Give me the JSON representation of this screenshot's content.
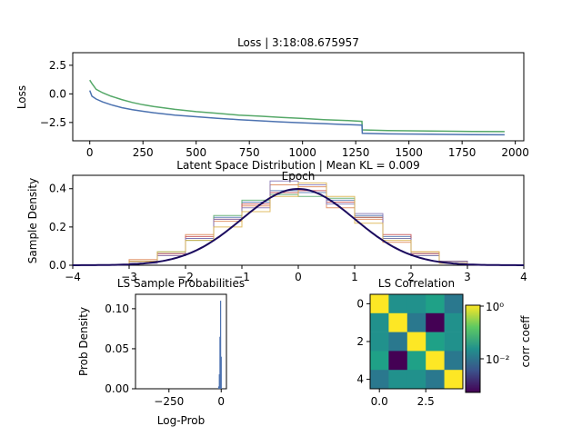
{
  "chart_data": [
    {
      "type": "line",
      "title": "Loss | 3:18:08.675957",
      "xlabel": "Epoch",
      "ylabel": "Loss",
      "xlim": [
        -80,
        2040
      ],
      "ylim": [
        -4.1,
        3.6
      ],
      "xticks": [
        "0",
        "250",
        "500",
        "750",
        "1000",
        "1250",
        "1500",
        "1750",
        "2000"
      ],
      "yticks": [
        "2.5",
        "0.0",
        "−2.5"
      ],
      "series": [
        {
          "color": "#4c72b0",
          "x": [
            0,
            10,
            30,
            60,
            100,
            150,
            200,
            250,
            300,
            400,
            500,
            600,
            700,
            800,
            900,
            1000,
            1100,
            1200,
            1279,
            1281,
            1400,
            1600,
            1800,
            1950
          ],
          "y": [
            0.3,
            -0.2,
            -0.45,
            -0.7,
            -0.95,
            -1.2,
            -1.38,
            -1.52,
            -1.65,
            -1.85,
            -2.0,
            -2.13,
            -2.25,
            -2.35,
            -2.45,
            -2.53,
            -2.6,
            -2.68,
            -2.73,
            -3.45,
            -3.5,
            -3.53,
            -3.56,
            -3.58
          ]
        },
        {
          "color": "#55a868",
          "x": [
            0,
            10,
            30,
            60,
            100,
            150,
            200,
            250,
            300,
            400,
            500,
            600,
            700,
            800,
            900,
            1000,
            1100,
            1200,
            1279,
            1281,
            1400,
            1600,
            1800,
            1950
          ],
          "y": [
            1.2,
            0.9,
            0.4,
            0.1,
            -0.2,
            -0.5,
            -0.75,
            -0.95,
            -1.1,
            -1.35,
            -1.55,
            -1.7,
            -1.85,
            -1.95,
            -2.05,
            -2.15,
            -2.25,
            -2.32,
            -2.4,
            -3.15,
            -3.2,
            -3.25,
            -3.28,
            -3.3
          ]
        }
      ]
    },
    {
      "type": "line",
      "title": "Latent Space Distribution | Mean KL = 0.009",
      "xlabel": "",
      "ylabel": "Sample Density",
      "xlim": [
        -4,
        4
      ],
      "ylim": [
        0,
        0.47
      ],
      "xticks": [
        "−4",
        "−3",
        "−2",
        "−1",
        "0",
        "1",
        "2",
        "3",
        "4"
      ],
      "yticks": [
        "0.0",
        "0.2",
        "0.4"
      ],
      "reference_curve": {
        "color": "#1a0a5e",
        "mean": 0,
        "std": 1
      },
      "histograms": [
        {
          "color": "#4c72b0",
          "edges": [
            -3,
            -2.5,
            -2,
            -1.5,
            -1,
            -0.5,
            0,
            0.5,
            1,
            1.5,
            2,
            2.5,
            3
          ],
          "values": [
            0.02,
            0.06,
            0.14,
            0.25,
            0.33,
            0.39,
            0.38,
            0.34,
            0.26,
            0.15,
            0.06,
            0.02
          ]
        },
        {
          "color": "#dd8452",
          "edges": [
            -3,
            -2.5,
            -2,
            -1.5,
            -1,
            -0.5,
            0,
            0.5,
            1,
            1.5,
            2,
            2.5,
            3
          ],
          "values": [
            0.03,
            0.05,
            0.16,
            0.23,
            0.31,
            0.42,
            0.41,
            0.3,
            0.24,
            0.12,
            0.07,
            0.02
          ]
        },
        {
          "color": "#55a868",
          "edges": [
            -3,
            -2.5,
            -2,
            -1.5,
            -1,
            -0.5,
            0,
            0.5,
            1,
            1.5,
            2,
            2.5,
            3
          ],
          "values": [
            0.02,
            0.07,
            0.13,
            0.26,
            0.34,
            0.37,
            0.36,
            0.35,
            0.25,
            0.14,
            0.05,
            0.02
          ]
        },
        {
          "color": "#c44e52",
          "edges": [
            -3,
            -2.5,
            -2,
            -1.5,
            -1,
            -0.5,
            0,
            0.5,
            1,
            1.5,
            2,
            2.5,
            3
          ],
          "values": [
            0.02,
            0.06,
            0.15,
            0.24,
            0.32,
            0.38,
            0.39,
            0.33,
            0.25,
            0.16,
            0.06,
            0.02
          ]
        },
        {
          "color": "#8172b3",
          "edges": [
            -3,
            -2.5,
            -2,
            -1.5,
            -1,
            -0.5,
            0,
            0.5,
            1,
            1.5,
            2,
            2.5,
            3
          ],
          "values": [
            0.01,
            0.05,
            0.14,
            0.24,
            0.3,
            0.44,
            0.42,
            0.32,
            0.27,
            0.14,
            0.05,
            0.02
          ]
        },
        {
          "color": "#dbb14a",
          "edges": [
            -3,
            -2.5,
            -2,
            -1.5,
            -1,
            -0.5,
            0,
            0.5,
            1,
            1.5,
            2,
            2.5,
            3
          ],
          "values": [
            0.02,
            0.07,
            0.13,
            0.2,
            0.28,
            0.36,
            0.43,
            0.36,
            0.22,
            0.13,
            0.07,
            0.01
          ]
        }
      ]
    },
    {
      "type": "bar",
      "title": "LS Sample Probabilities",
      "xlabel": "Log-Prob",
      "ylabel": "Prob Density",
      "xlim": [
        -410,
        25
      ],
      "ylim": [
        0,
        0.118
      ],
      "xticks": [
        "−250",
        "0"
      ],
      "yticks": [
        "0.00",
        "0.05",
        "0.10"
      ],
      "color": "#4c72b0",
      "bins": [
        {
          "x": -12,
          "value": 0.003
        },
        {
          "x": -9,
          "value": 0.018
        },
        {
          "x": -6,
          "value": 0.065
        },
        {
          "x": -3,
          "value": 0.11
        },
        {
          "x": 0,
          "value": 0.04
        }
      ]
    },
    {
      "type": "heatmap",
      "title": "LS Correlation",
      "xlabel": "",
      "ylabel": "",
      "xticks": [
        "0.0",
        "2.5"
      ],
      "yticks": [
        "0",
        "2",
        "4"
      ],
      "colorbar": {
        "label": "corr coeff",
        "ticks": [
          "10⁰",
          "10⁻²"
        ],
        "scale": "log"
      },
      "cells": [
        [
          "#fde725",
          "#21918c",
          "#21918c",
          "#1fa187",
          "#2a788e"
        ],
        [
          "#21918c",
          "#fde725",
          "#2a788e",
          "#440154",
          "#21918c"
        ],
        [
          "#21918c",
          "#2a788e",
          "#fde725",
          "#1fa187",
          "#21918c"
        ],
        [
          "#1fa187",
          "#440154",
          "#1fa187",
          "#fde725",
          "#2a788e"
        ],
        [
          "#2a788e",
          "#21918c",
          "#21918c",
          "#2a788e",
          "#fde725"
        ]
      ]
    }
  ]
}
